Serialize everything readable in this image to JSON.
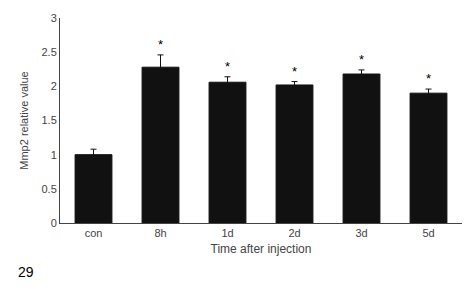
{
  "chart_data": {
    "type": "bar",
    "xlabel": "Time after injection",
    "ylabel": "Mmp2 relative value",
    "categories": [
      "con",
      "8h",
      "1d",
      "2d",
      "3d",
      "5d"
    ],
    "values": [
      1.0,
      2.28,
      2.06,
      2.02,
      2.18,
      1.9
    ],
    "errors": [
      0.08,
      0.18,
      0.08,
      0.05,
      0.06,
      0.06
    ],
    "color": "#111111",
    "ylim": [
      0,
      3.0
    ],
    "yticks": [
      0,
      0.5,
      1,
      1.5,
      2,
      2.5,
      3
    ],
    "grid": false,
    "annotations": [
      {
        "x": "8h",
        "text": "*"
      },
      {
        "x": "1d",
        "text": "*"
      },
      {
        "x": "2d",
        "text": "*"
      },
      {
        "x": "3d",
        "text": "*"
      },
      {
        "x": "5d",
        "text": "*"
      },
      {
        "text": "29"
      }
    ]
  }
}
